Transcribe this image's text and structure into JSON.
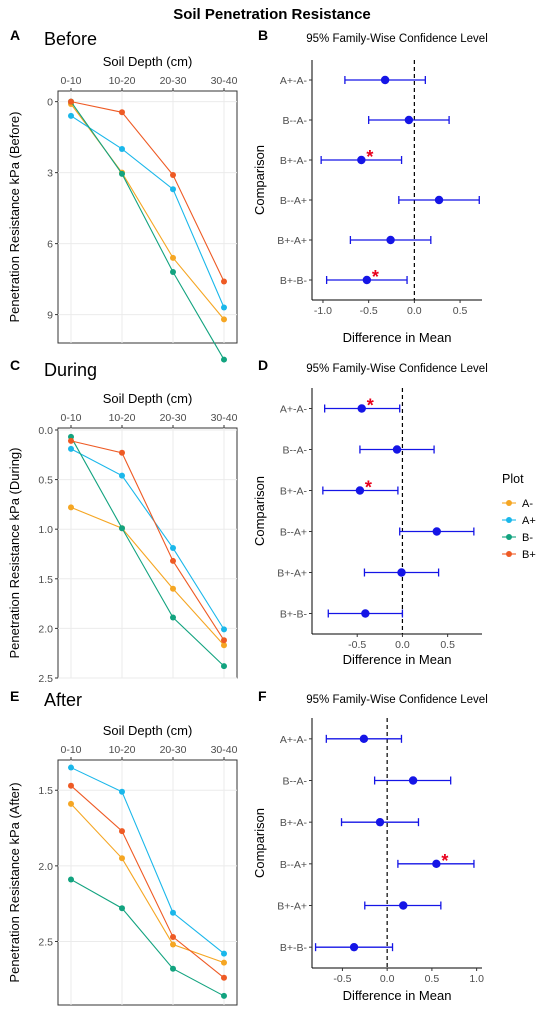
{
  "figure": {
    "title": "Soil Penetration Resistance",
    "panel_letters": [
      "A",
      "B",
      "C",
      "D",
      "E",
      "F"
    ],
    "legend": {
      "title": "Plot",
      "entries": [
        "A-",
        "A+",
        "B-",
        "B+"
      ]
    },
    "colors": {
      "A-": "#F5A623",
      "A+": "#1AB7EA",
      "B-": "#12A37F",
      "B+": "#EE5A24",
      "ci": "#1515E6",
      "star": "#E8001C"
    }
  },
  "chart_data": [
    {
      "panel": "A",
      "type": "line",
      "title": "Before",
      "xlabel": "Soil Depth (cm)",
      "ylabel": "Penetration Resistance kPa (Before)",
      "categories": [
        "0-10",
        "10-20",
        "20-30",
        "30-40"
      ],
      "ylim": [
        10.2,
        -0.45
      ],
      "y_reversed": true,
      "yticks": [
        0,
        3,
        6,
        9
      ],
      "ytick_labels": [
        "0",
        "3",
        "6",
        "9"
      ],
      "series": [
        {
          "name": "A-",
          "values": [
            0.1,
            3.0,
            6.6,
            9.2
          ]
        },
        {
          "name": "A+",
          "values": [
            0.6,
            2.0,
            3.7,
            8.7
          ]
        },
        {
          "name": "B-",
          "values": [
            0.0,
            3.05,
            7.2,
            10.9
          ]
        },
        {
          "name": "B+",
          "values": [
            0.0,
            0.45,
            3.1,
            7.6
          ]
        }
      ]
    },
    {
      "panel": "B",
      "type": "scatter",
      "title": "95% Family-Wise Confidence Level",
      "xlabel": "Difference in Mean",
      "ylabel": "Comparison",
      "categories": [
        "A+-A-",
        "B--A-",
        "B+-A-",
        "B--A+",
        "B+-A+",
        "B+-B-"
      ],
      "xlim": [
        -1.12,
        0.74
      ],
      "xticks": [
        -1.0,
        -0.5,
        0.0,
        0.5
      ],
      "xtick_labels": [
        "-1.0",
        "-0.5",
        "0.0",
        "0.5"
      ],
      "reference_line": 0,
      "points": [
        {
          "label": "A+-A-",
          "mean": -0.32,
          "lwr": -0.76,
          "upr": 0.12,
          "significant": false
        },
        {
          "label": "B--A-",
          "mean": -0.06,
          "lwr": -0.5,
          "upr": 0.38,
          "significant": false
        },
        {
          "label": "B+-A-",
          "mean": -0.58,
          "lwr": -1.02,
          "upr": -0.14,
          "significant": true
        },
        {
          "label": "B--A+",
          "mean": 0.27,
          "lwr": -0.17,
          "upr": 0.71,
          "significant": false
        },
        {
          "label": "B+-A+",
          "mean": -0.26,
          "lwr": -0.7,
          "upr": 0.18,
          "significant": false
        },
        {
          "label": "B+-B-",
          "mean": -0.52,
          "lwr": -0.96,
          "upr": -0.08,
          "significant": true
        }
      ]
    },
    {
      "panel": "C",
      "type": "line",
      "title": "During",
      "xlabel": "Soil Depth (cm)",
      "ylabel": "Penetration Resistance kPa (During)",
      "categories": [
        "0-10",
        "10-20",
        "20-30",
        "30-40"
      ],
      "ylim": [
        2.5,
        -0.02
      ],
      "y_reversed": true,
      "yticks": [
        0.0,
        0.5,
        1.0,
        1.5,
        2.0,
        2.5
      ],
      "ytick_labels": [
        "0.0",
        "0.5",
        "1.0",
        "1.5",
        "2.0",
        "2.5"
      ],
      "series": [
        {
          "name": "A-",
          "values": [
            0.78,
            0.99,
            1.6,
            2.17
          ]
        },
        {
          "name": "A+",
          "values": [
            0.19,
            0.46,
            1.19,
            2.01
          ]
        },
        {
          "name": "B-",
          "values": [
            0.07,
            0.99,
            1.89,
            2.38
          ]
        },
        {
          "name": "B+",
          "values": [
            0.11,
            0.23,
            1.32,
            2.12
          ]
        }
      ]
    },
    {
      "panel": "D",
      "type": "scatter",
      "title": "95% Family-Wise Confidence Level",
      "xlabel": "Difference in Mean",
      "ylabel": "Comparison",
      "categories": [
        "A+-A-",
        "B--A-",
        "B+-A-",
        "B--A+",
        "B+-A+",
        "B+-B-"
      ],
      "xlim": [
        -1.0,
        0.88
      ],
      "xticks": [
        -0.5,
        0.0,
        0.5
      ],
      "xtick_labels": [
        "-0.5",
        "0.0",
        "0.5"
      ],
      "reference_line": 0,
      "points": [
        {
          "label": "A+-A-",
          "mean": -0.45,
          "lwr": -0.86,
          "upr": -0.03,
          "significant": true
        },
        {
          "label": "B--A-",
          "mean": -0.06,
          "lwr": -0.47,
          "upr": 0.35,
          "significant": false
        },
        {
          "label": "B+-A-",
          "mean": -0.47,
          "lwr": -0.88,
          "upr": -0.05,
          "significant": true
        },
        {
          "label": "B--A+",
          "mean": 0.38,
          "lwr": -0.03,
          "upr": 0.79,
          "significant": false
        },
        {
          "label": "B+-A+",
          "mean": -0.01,
          "lwr": -0.42,
          "upr": 0.4,
          "significant": false
        },
        {
          "label": "B+-B-",
          "mean": -0.41,
          "lwr": -0.82,
          "upr": 0.0,
          "significant": false
        }
      ]
    },
    {
      "panel": "E",
      "type": "line",
      "title": "After",
      "xlabel": "Soil Depth (cm)",
      "ylabel": "Penetration Resistance kPa (After)",
      "categories": [
        "0-10",
        "10-20",
        "20-30",
        "30-40"
      ],
      "ylim": [
        2.92,
        1.3
      ],
      "y_reversed": true,
      "yticks": [
        1.5,
        2.0,
        2.5
      ],
      "ytick_labels": [
        "1.5",
        "2.0",
        "2.5"
      ],
      "series": [
        {
          "name": "A-",
          "values": [
            1.59,
            1.95,
            2.52,
            2.64
          ]
        },
        {
          "name": "A+",
          "values": [
            1.35,
            1.51,
            2.31,
            2.58
          ]
        },
        {
          "name": "B-",
          "values": [
            2.09,
            2.28,
            2.68,
            2.86
          ]
        },
        {
          "name": "B+",
          "values": [
            1.47,
            1.77,
            2.47,
            2.74
          ]
        }
      ]
    },
    {
      "panel": "F",
      "type": "scatter",
      "title": "95% Family-Wise Confidence Level",
      "xlabel": "Difference in Mean",
      "ylabel": "Comparison",
      "categories": [
        "A+-A-",
        "B--A-",
        "B+-A-",
        "B--A+",
        "B+-A+",
        "B+-B-"
      ],
      "xlim": [
        -0.84,
        1.06
      ],
      "xticks": [
        -0.5,
        0.0,
        0.5,
        1.0
      ],
      "xtick_labels": [
        "-0.5",
        "0.0",
        "0.5",
        "1.0"
      ],
      "reference_line": 0,
      "points": [
        {
          "label": "A+-A-",
          "mean": -0.26,
          "lwr": -0.68,
          "upr": 0.16,
          "significant": false
        },
        {
          "label": "B--A-",
          "mean": 0.29,
          "lwr": -0.14,
          "upr": 0.71,
          "significant": false
        },
        {
          "label": "B+-A-",
          "mean": -0.08,
          "lwr": -0.51,
          "upr": 0.35,
          "significant": false
        },
        {
          "label": "B--A+",
          "mean": 0.55,
          "lwr": 0.12,
          "upr": 0.97,
          "significant": true
        },
        {
          "label": "B+-A+",
          "mean": 0.18,
          "lwr": -0.25,
          "upr": 0.6,
          "significant": false
        },
        {
          "label": "B+-B-",
          "mean": -0.37,
          "lwr": -0.8,
          "upr": 0.06,
          "significant": false
        }
      ]
    }
  ]
}
